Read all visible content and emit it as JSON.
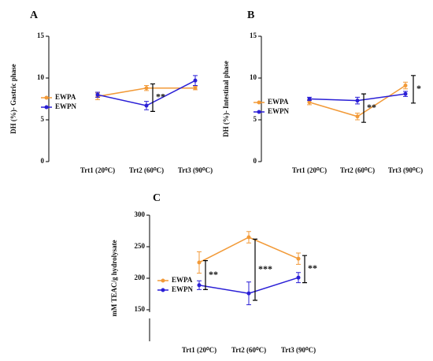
{
  "chart_data": [
    {
      "type": "line",
      "label": "A",
      "ylabel": "DH (%)- Gastric phase",
      "categories": [
        "Trt1 (20⁰C)",
        "Trt2 (60⁰C)",
        "Trt3 (90⁰C)"
      ],
      "series": [
        {
          "name": "EWPA",
          "color": "#f29a38",
          "values": [
            7.8,
            8.8,
            8.8
          ],
          "errors": [
            0.4,
            0.3,
            0.2
          ]
        },
        {
          "name": "EWPN",
          "color": "#2a1fd6",
          "values": [
            8.0,
            6.7,
            9.7
          ],
          "errors": [
            0.3,
            0.5,
            0.6
          ]
        }
      ],
      "annotations": [
        {
          "text": "**",
          "x": "Trt2 (60⁰C)",
          "range": [
            6.0,
            9.3
          ]
        }
      ],
      "ylim": [
        0,
        15
      ],
      "yticks": [
        0,
        5,
        10,
        15
      ],
      "grid": false,
      "legend": "left"
    },
    {
      "type": "line",
      "label": "B",
      "ylabel": "DH (%)- Intestinal phase",
      "categories": [
        "Trt1 (20⁰C)",
        "Trt2 (60⁰C)",
        "Trt3 (90⁰C)"
      ],
      "series": [
        {
          "name": "EWPA",
          "color": "#f29a38",
          "values": [
            7.1,
            5.4,
            9.1
          ],
          "errors": [
            0.3,
            0.4,
            0.4
          ]
        },
        {
          "name": "EWPN",
          "color": "#2a1fd6",
          "values": [
            7.5,
            7.3,
            8.1
          ],
          "errors": [
            0.2,
            0.4,
            0.3
          ]
        }
      ],
      "annotations": [
        {
          "text": "**",
          "x": "Trt2 (60⁰C)",
          "range": [
            4.7,
            8.1
          ]
        },
        {
          "text": "*",
          "x": "Trt3 (90⁰C)",
          "range": [
            7.0,
            10.3
          ]
        }
      ],
      "ylim": [
        0,
        15
      ],
      "yticks": [
        0,
        5,
        10,
        15
      ],
      "grid": false,
      "legend": "left"
    },
    {
      "type": "line",
      "label": "C",
      "ylabel": "mM TEAC/g hydrolysate",
      "categories": [
        "Trt1 (20⁰C)",
        "Trt2 (60⁰C)",
        "Trt3 (90⁰C)"
      ],
      "series": [
        {
          "name": "EWPA",
          "color": "#f29a38",
          "values": [
            225,
            265,
            231
          ],
          "errors": [
            17,
            9,
            9
          ]
        },
        {
          "name": "EWPN",
          "color": "#2a1fd6",
          "values": [
            189,
            176,
            201
          ],
          "errors": [
            7,
            18,
            8
          ]
        }
      ],
      "annotations": [
        {
          "text": "**",
          "x": "Trt1 (20⁰C)",
          "range": [
            182,
            228
          ]
        },
        {
          "text": "***",
          "x": "Trt2 (60⁰C)",
          "range": [
            165,
            262
          ]
        },
        {
          "text": "**",
          "x": "Trt3 (90⁰C)",
          "range": [
            193,
            236
          ]
        }
      ],
      "ylim": [
        100,
        300
      ],
      "yticks": [
        150,
        200,
        250,
        300
      ],
      "grid": false,
      "legend": "left"
    }
  ]
}
